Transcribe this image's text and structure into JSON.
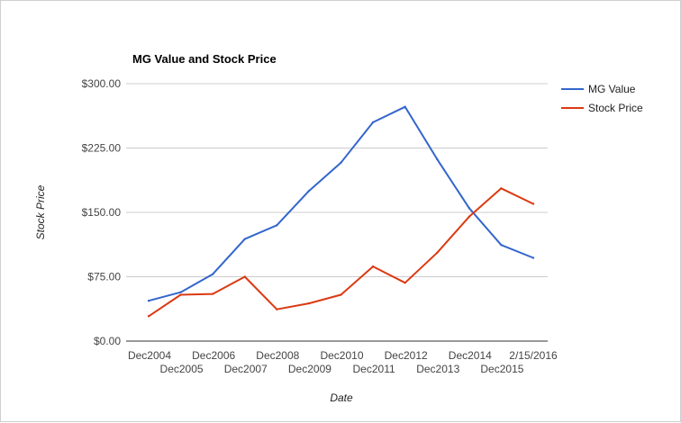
{
  "chart_data": {
    "type": "line",
    "title": "MG Value and Stock Price",
    "xlabel": "Date",
    "ylabel": "Stock Price",
    "ylim": [
      0,
      300
    ],
    "y_ticks": [
      0,
      75,
      150,
      225,
      300
    ],
    "y_tick_labels": [
      "$0.00",
      "$75.00",
      "$150.00",
      "$225.00",
      "$300.00"
    ],
    "categories": [
      "Dec2004",
      "Dec2005",
      "Dec2006",
      "Dec2007",
      "Dec2008",
      "Dec2009",
      "Dec2010",
      "Dec2011",
      "Dec2012",
      "Dec2013",
      "Dec2014",
      "Dec2015",
      "2/15/2016"
    ],
    "series": [
      {
        "name": "MG Value",
        "color": "#3366cc",
        "values": [
          47,
          57,
          78,
          119,
          135,
          175,
          208,
          255,
          273,
          212,
          155,
          112,
          97
        ]
      },
      {
        "name": "Stock Price",
        "color": "#dc3912",
        "values": [
          29,
          54,
          55,
          75,
          37,
          44,
          54,
          87,
          68,
          103,
          145,
          178,
          160
        ]
      }
    ],
    "grid": true,
    "legend_position": "right"
  }
}
